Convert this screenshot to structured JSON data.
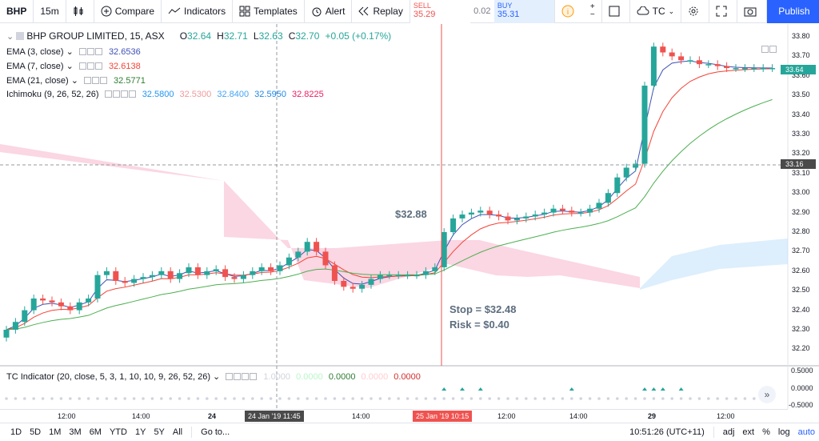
{
  "toolbar": {
    "symbol": "BHP",
    "interval": "15m",
    "compare": "Compare",
    "indicators": "Indicators",
    "templates": "Templates",
    "alert": "Alert",
    "replay": "Replay",
    "sell_label": "SELL",
    "sell_price": "35.29",
    "spread": "0.02",
    "buy_label": "BUY",
    "buy_price": "35.31",
    "tc_label": "TC",
    "publish": "Publish"
  },
  "legend": {
    "title": "BHP GROUP LIMITED, 15, ASX",
    "o_label": "O",
    "o": "32.64",
    "h_label": "H",
    "h": "32.71",
    "l_label": "L",
    "l": "32.63",
    "c_label": "C",
    "c": "32.70",
    "change": "+0.05 (+0.17%)",
    "ema3_name": "EMA (3, close)",
    "ema3_val": "32.6536",
    "ema7_name": "EMA (7, close)",
    "ema7_val": "32.6138",
    "ema21_name": "EMA (21, close)",
    "ema21_val": "32.5771",
    "ichi_name": "Ichimoku (9, 26, 52, 26)",
    "ichi_v1": "32.5800",
    "ichi_v2": "32.5300",
    "ichi_v3": "32.8400",
    "ichi_v4": "32.5950",
    "ichi_v5": "32.8225"
  },
  "annotations": {
    "entry": "$32.88",
    "stop": "Stop = $32.48",
    "risk": "Risk = $0.40"
  },
  "price_axis": {
    "ticks": [
      "33.80",
      "33.70",
      "33.60",
      "33.50",
      "33.40",
      "33.30",
      "33.20",
      "33.10",
      "33.00",
      "32.90",
      "32.80",
      "32.70",
      "32.60",
      "32.50",
      "32.40",
      "32.30",
      "32.20"
    ],
    "last_price": "33.64",
    "crosshair_price": "33.16"
  },
  "indicator_pane": {
    "name": "TC Indicator (20, close, 5, 3, 1, 10, 10, 9, 26, 52, 26)",
    "v1": "1.0000",
    "v2": "0.0000",
    "v3": "0.0000",
    "v4": "0.0000",
    "v5": "0.0000",
    "ticks": [
      "0.5000",
      "0.0000",
      "-0.5000"
    ]
  },
  "time_axis": {
    "labels": [
      "12:00",
      "14:00",
      "24",
      "14:00",
      "12:00",
      "14:00",
      "29",
      "12:00"
    ],
    "cursor1": "24 Jan '19   11:45",
    "cursor2": "25 Jan '19   10:15"
  },
  "bottom": {
    "ranges": [
      "1D",
      "5D",
      "1M",
      "3M",
      "6M",
      "YTD",
      "1Y",
      "5Y",
      "All"
    ],
    "goto": "Go to...",
    "clock": "10:51:26 (UTC+11)",
    "adj": "adj",
    "ext": "ext",
    "pct": "%",
    "log": "log",
    "auto": "auto"
  },
  "colors": {
    "up": "#26a69a",
    "down": "#ef5350",
    "accent": "#2962ff",
    "ema3": "#3f51b5",
    "ema7": "#f44336",
    "ema21": "#4caf50",
    "cloud_bear": "#f8bbd0",
    "cloud_bull": "#bbdefb"
  }
}
